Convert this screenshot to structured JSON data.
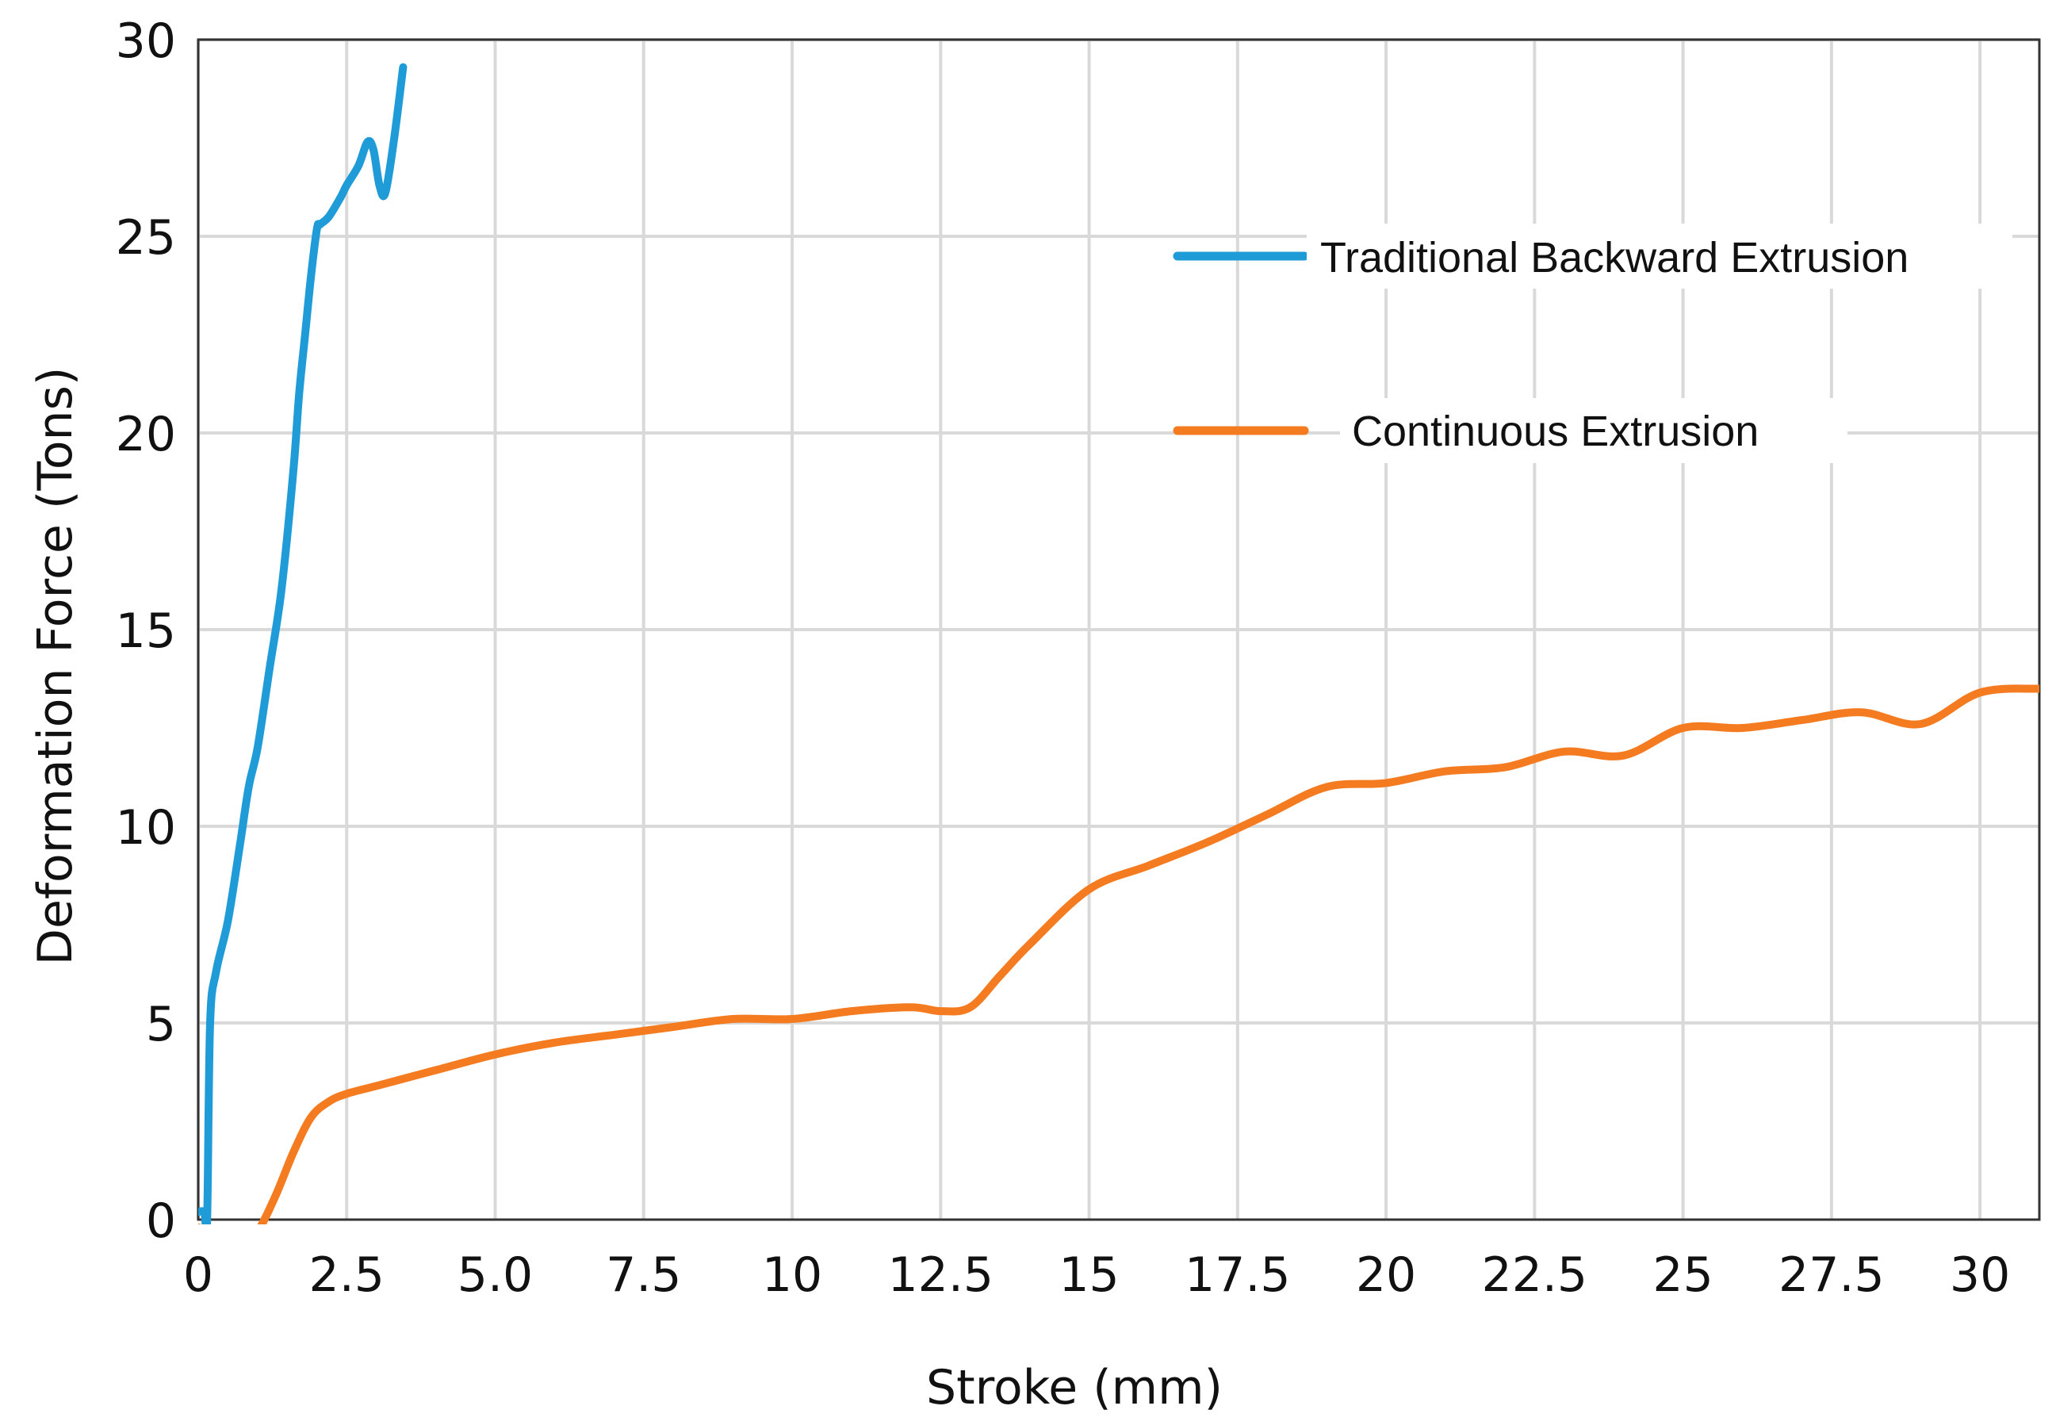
{
  "chart_data": {
    "type": "line",
    "title": "",
    "xlabel": "Stroke (mm)",
    "ylabel": "Deformation Force (Tons)",
    "xlim": [
      0,
      31
    ],
    "ylim": [
      0,
      30
    ],
    "grid": true,
    "legend_position": "top-right",
    "x_ticks": [
      {
        "value": 0,
        "label": "0"
      },
      {
        "value": 2.5,
        "label": "2.5"
      },
      {
        "value": 5,
        "label": "5.0"
      },
      {
        "value": 7.5,
        "label": "7.5"
      },
      {
        "value": 10,
        "label": "10"
      },
      {
        "value": 12.5,
        "label": "12.5"
      },
      {
        "value": 15,
        "label": "15"
      },
      {
        "value": 17.5,
        "label": "17.5"
      },
      {
        "value": 20,
        "label": "20"
      },
      {
        "value": 22.5,
        "label": "22.5"
      },
      {
        "value": 25,
        "label": "25"
      },
      {
        "value": 27.5,
        "label": "27.5"
      },
      {
        "value": 30,
        "label": "30"
      }
    ],
    "y_ticks": [
      {
        "value": 0,
        "label": "0"
      },
      {
        "value": 5,
        "label": "5"
      },
      {
        "value": 10,
        "label": "10"
      },
      {
        "value": 15,
        "label": "15"
      },
      {
        "value": 20,
        "label": "20"
      },
      {
        "value": 25,
        "label": "25"
      },
      {
        "value": 30,
        "label": "30"
      }
    ],
    "series": [
      {
        "name": "Traditional Backward Extrusion",
        "color": "#1f9bd7",
        "x": [
          0.0,
          0.1,
          0.15,
          0.2,
          0.3,
          0.5,
          0.7,
          0.85,
          1.0,
          1.2,
          1.4,
          1.6,
          1.7,
          1.8,
          1.9,
          2.0,
          2.05,
          2.2,
          2.4,
          2.5,
          2.7,
          2.85,
          2.95,
          3.05,
          3.15,
          3.3,
          3.45
        ],
        "y": [
          0.2,
          0.2,
          0.0,
          5.0,
          6.3,
          7.6,
          9.5,
          11.0,
          12.0,
          14.0,
          16.0,
          19.0,
          21.0,
          22.5,
          24.0,
          25.2,
          25.3,
          25.5,
          26.0,
          26.3,
          26.8,
          27.4,
          27.2,
          26.3,
          26.1,
          27.5,
          29.3
        ]
      },
      {
        "name": "Continuous Extrusion",
        "color": "#f47b20",
        "x": [
          0.0,
          0.2,
          0.5,
          0.8,
          1.0,
          1.3,
          1.6,
          1.9,
          2.2,
          2.5,
          3.0,
          4.0,
          5.0,
          6.0,
          7.0,
          8.0,
          9.0,
          10.0,
          11.0,
          12.0,
          12.5,
          13.0,
          13.5,
          14.0,
          15.0,
          16.0,
          17.0,
          18.0,
          19.0,
          20.0,
          21.0,
          22.0,
          23.0,
          24.0,
          25.0,
          26.0,
          27.0,
          28.0,
          29.0,
          30.0,
          31.0
        ],
        "y": [
          -0.2,
          -0.3,
          -0.4,
          -0.4,
          -0.3,
          0.6,
          1.7,
          2.6,
          3.0,
          3.2,
          3.4,
          3.8,
          4.2,
          4.5,
          4.7,
          4.9,
          5.1,
          5.1,
          5.3,
          5.4,
          5.3,
          5.4,
          6.2,
          7.0,
          8.4,
          9.0,
          9.6,
          10.3,
          11.0,
          11.1,
          11.4,
          11.5,
          11.9,
          11.8,
          12.5,
          12.5,
          12.7,
          12.9,
          12.6,
          13.4,
          13.5
        ]
      }
    ]
  }
}
